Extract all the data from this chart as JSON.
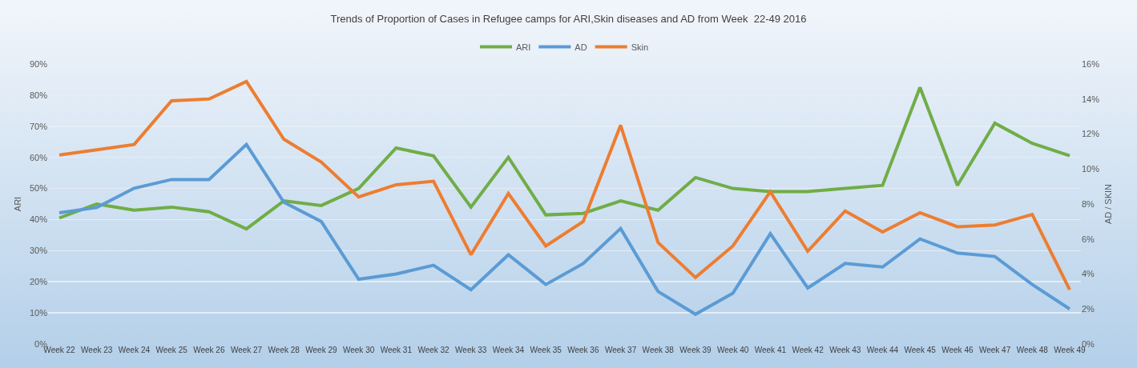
{
  "chart_data": {
    "type": "line",
    "title": "Trends of Proportion of Cases in Refugee camps for ARI,Skin diseases and AD from Week  22-49 2016",
    "ylabel": "ARI",
    "y2label": "AD / SKIN",
    "categories": [
      "Week 22",
      "Week 23",
      "Week 24",
      "Week 25",
      "Week 26",
      "Week 27",
      "Week 28",
      "Week 29",
      "Week 30",
      "Week 31",
      "Week 32",
      "Week 33",
      "Week 34",
      "Week 35",
      "Week 36",
      "Week 37",
      "Week 38",
      "Week 39",
      "Week 40",
      "Week 41",
      "Week 42",
      "Week 43",
      "Week 44",
      "Week 45",
      "Week 46",
      "Week 47",
      "Week 48",
      "Week 49"
    ],
    "series": [
      {
        "name": "ARI",
        "color": "#70ad47",
        "values": [
          40.5,
          45,
          43,
          44,
          42.5,
          37,
          46,
          44.5,
          50,
          63,
          60.5,
          44,
          60,
          41.5,
          42,
          46,
          43,
          53.5,
          50,
          49,
          49,
          50,
          51,
          82.5,
          51,
          71,
          64.5,
          60.5
        ]
      },
      {
        "name": "AD",
        "color": "#5b9bd5",
        "axis": "y2",
        "values": [
          7.5,
          7.8,
          8.9,
          9.4,
          9.4,
          11.4,
          8.1,
          7.0,
          3.7,
          4.0,
          4.5,
          3.1,
          5.1,
          3.4,
          4.6,
          6.6,
          3.0,
          1.7,
          2.9,
          6.3,
          3.2,
          4.6,
          4.4,
          6.0,
          5.2,
          5.0,
          3.4,
          2.0
        ]
      },
      {
        "name": "Skin",
        "color": "#ed7d31",
        "axis": "y2",
        "values": [
          10.8,
          11.1,
          11.4,
          13.9,
          14.0,
          15.0,
          11.7,
          10.4,
          8.4,
          9.1,
          9.3,
          5.1,
          8.6,
          5.6,
          7.0,
          12.5,
          5.8,
          3.8,
          5.6,
          8.7,
          5.3,
          7.6,
          6.4,
          7.5,
          6.7,
          6.8,
          7.4,
          3.1
        ]
      }
    ],
    "ylim": [
      0,
      90
    ],
    "yticks": [
      {
        "value": 0,
        "label": "0%"
      },
      {
        "value": 10,
        "label": "10%"
      },
      {
        "value": 20,
        "label": "20%"
      },
      {
        "value": 30,
        "label": "30%"
      },
      {
        "value": 40,
        "label": "40%"
      },
      {
        "value": 50,
        "label": "50%"
      },
      {
        "value": 60,
        "label": "60%"
      },
      {
        "value": 70,
        "label": "70%"
      },
      {
        "value": 80,
        "label": "80%"
      },
      {
        "value": 90,
        "label": "90%"
      }
    ],
    "y2lim": [
      0,
      16
    ],
    "y2ticks": [
      {
        "value": 0,
        "label": "0%"
      },
      {
        "value": 2,
        "label": "2%"
      },
      {
        "value": 4,
        "label": "4%"
      },
      {
        "value": 6,
        "label": "6%"
      },
      {
        "value": 8,
        "label": "8%"
      },
      {
        "value": 10,
        "label": "10%"
      },
      {
        "value": 12,
        "label": "12%"
      },
      {
        "value": 14,
        "label": "14%"
      },
      {
        "value": 16,
        "label": "16%"
      }
    ],
    "grid": "y",
    "legend": "top",
    "marker": "none",
    "line_style": "solid"
  }
}
